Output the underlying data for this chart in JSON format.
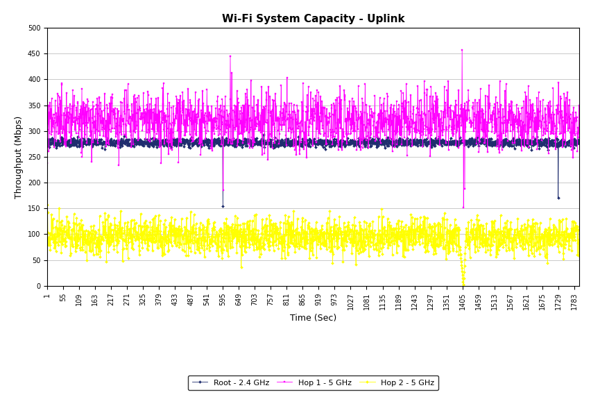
{
  "title": "Wi-Fi System Capacity - Uplink",
  "xlabel": "Time (Sec)",
  "ylabel": "Throughput (Mbps)",
  "ylim": [
    0,
    500
  ],
  "xlim": [
    1,
    1800
  ],
  "yticks": [
    0,
    50,
    100,
    150,
    200,
    250,
    300,
    350,
    400,
    450,
    500
  ],
  "xtick_values": [
    1,
    55,
    109,
    163,
    217,
    271,
    325,
    379,
    433,
    487,
    541,
    595,
    649,
    703,
    757,
    811,
    865,
    919,
    973,
    1027,
    1081,
    1135,
    1189,
    1243,
    1297,
    1351,
    1405,
    1459,
    1513,
    1567,
    1621,
    1675,
    1729,
    1783
  ],
  "series": [
    {
      "label": "Root - 2.4 GHz",
      "color": "#1F2D6E",
      "marker": "D",
      "markersize": 2,
      "linewidth": 0.6
    },
    {
      "label": "Hop 1 - 5 GHz",
      "color": "#FF00FF",
      "marker": "s",
      "markersize": 2,
      "linewidth": 0.6
    },
    {
      "label": "Hop 2 - 5 GHz",
      "color": "#FFFF00",
      "marker": "D",
      "markersize": 2,
      "linewidth": 0.6
    }
  ],
  "legend_edgecolor": "#000000",
  "background_color": "#FFFFFF",
  "title_fontsize": 11,
  "axis_label_fontsize": 9,
  "tick_fontsize": 7,
  "root_mean": 278,
  "root_std": 4,
  "root_min": 258,
  "root_max": 295,
  "hop1_mean": 320,
  "hop1_std": 28,
  "hop1_min": 180,
  "hop1_max": 460,
  "hop2_mean": 95,
  "hop2_std": 18,
  "hop2_min": 25,
  "hop2_max": 155
}
